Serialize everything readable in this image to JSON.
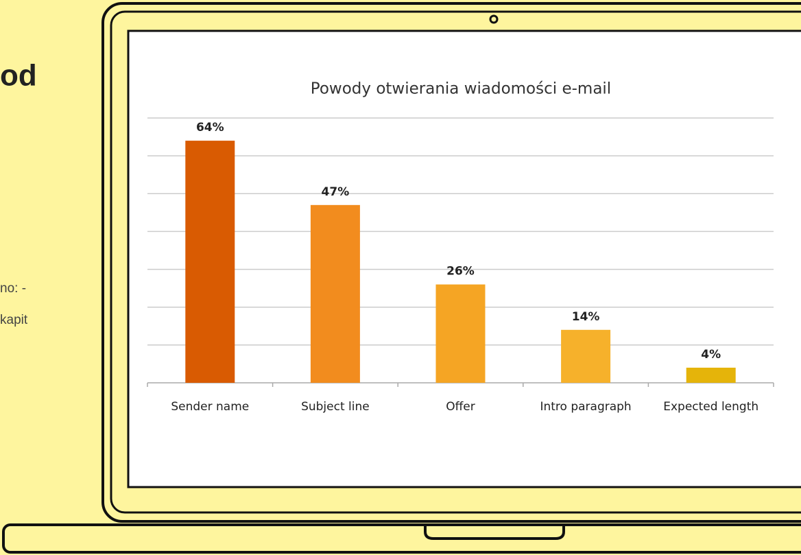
{
  "side_text": {
    "heading": "od",
    "line1": "no: -",
    "line2": "kapit"
  },
  "chart_data": {
    "type": "bar",
    "title": "Powody otwierania wiadomości e-mail",
    "categories": [
      "Sender name",
      "Subject line",
      "Offer",
      "Intro paragraph",
      "Expected length"
    ],
    "values": [
      64,
      47,
      26,
      14,
      4
    ],
    "value_labels": [
      "64%",
      "47%",
      "26%",
      "14%",
      "4%"
    ],
    "colors": [
      "#d95b02",
      "#f28c1e",
      "#f5a524",
      "#f6b12b",
      "#e5b40a"
    ],
    "ylim": [
      0,
      70
    ],
    "yticks": [
      0,
      10,
      20,
      30,
      40,
      50,
      60,
      70
    ],
    "grid": true
  }
}
